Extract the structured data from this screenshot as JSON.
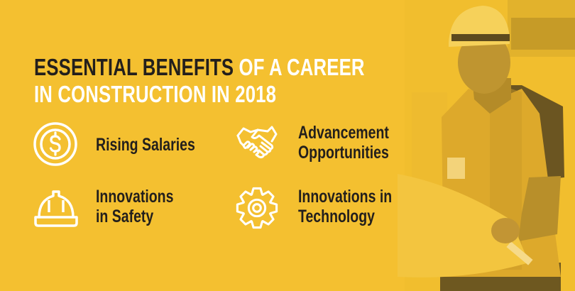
{
  "title": {
    "line1_dark": "ESSENTIAL BENEFITS",
    "line1_light": " OF A CAREER",
    "line2": "IN CONSTRUCTION IN 2018"
  },
  "benefits": [
    {
      "icon": "dollar-coin-icon",
      "line1": "Rising Salaries",
      "line2": ""
    },
    {
      "icon": "handshake-icon",
      "line1": "Advancement",
      "line2": "Opportunities"
    },
    {
      "icon": "hard-hat-icon",
      "line1": "Innovations",
      "line2": "in Safety"
    },
    {
      "icon": "gear-icon",
      "line1": "Innovations in",
      "line2": "Technology"
    }
  ],
  "colors": {
    "background": "#F4C030",
    "dark_text": "#231F1C",
    "icon": "#FFFFFF"
  }
}
